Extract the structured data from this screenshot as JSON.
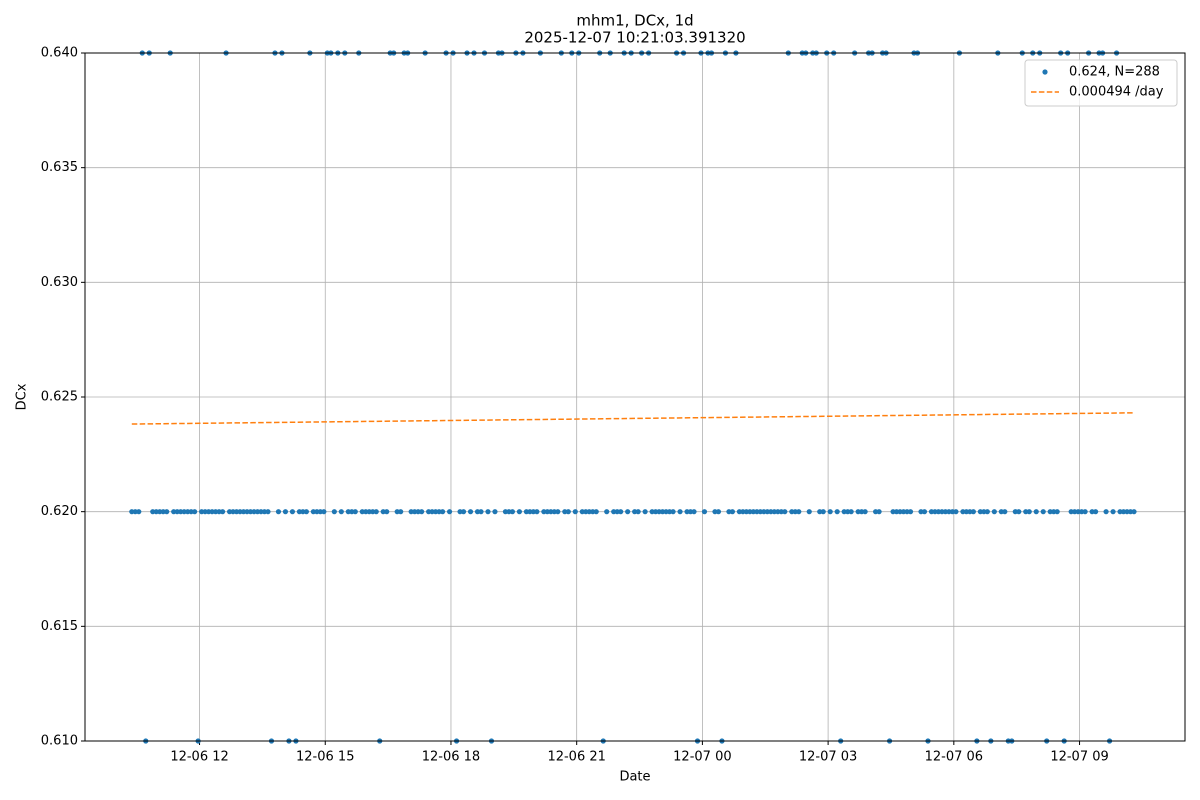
{
  "chart_data": {
    "type": "scatter",
    "title": "mhm1, DCx, 1d",
    "subtitle": "2025-12-07 10:21:03.391320",
    "x_label": "Date",
    "y_label": "DCx",
    "xlim": [
      "12-06 09:16",
      "12-07 11:31"
    ],
    "xticks": [
      "12-06 12",
      "12-06 15",
      "12-06 18",
      "12-06 21",
      "12-07 00",
      "12-07 03",
      "12-07 06",
      "12-07 09"
    ],
    "ylim": [
      0.61,
      0.64
    ],
    "yticks": [
      {
        "value": 0.61,
        "label": "0.610"
      },
      0.615,
      {
        "value": 0.62,
        "label": "0.620"
      },
      0.625,
      {
        "value": 0.63,
        "label": "0.630"
      },
      0.635,
      {
        "value": 0.64,
        "label": "0.640"
      }
    ],
    "grid": true,
    "legend": "upper right",
    "series": [
      {
        "name": "0.624, N=288",
        "type": "scatter",
        "color": "#1f77b4",
        "x": [
          "12-06 10:23",
          "12-06 10:28",
          "12-06 10:33",
          "12-06 10:38",
          "12-06 10:43",
          "12-06 10:48",
          "12-06 10:53",
          "12-06 10:58",
          "12-06 11:03",
          "12-06 11:08",
          "12-06 11:13",
          "12-06 11:18",
          "12-06 11:23",
          "12-06 11:28",
          "12-06 11:33",
          "12-06 11:38",
          "12-06 11:43",
          "12-06 11:48",
          "12-06 11:53",
          "12-06 11:58",
          "12-06 12:03",
          "12-06 12:08",
          "12-06 12:13",
          "12-06 12:18",
          "12-06 12:23",
          "12-06 12:28",
          "12-06 12:33",
          "12-06 12:38",
          "12-06 12:43",
          "12-06 12:48",
          "12-06 12:53",
          "12-06 12:58",
          "12-06 13:03",
          "12-06 13:08",
          "12-06 13:13",
          "12-06 13:18",
          "12-06 13:23",
          "12-06 13:28",
          "12-06 13:33",
          "12-06 13:38",
          "12-06 13:43",
          "12-06 13:48",
          "12-06 13:53",
          "12-06 13:58",
          "12-06 14:03",
          "12-06 14:08",
          "12-06 14:13",
          "12-06 14:18",
          "12-06 14:23",
          "12-06 14:28",
          "12-06 14:33",
          "12-06 14:38",
          "12-06 14:43",
          "12-06 14:48",
          "12-06 14:53",
          "12-06 14:58",
          "12-06 15:03",
          "12-06 15:08",
          "12-06 15:13",
          "12-06 15:18",
          "12-06 15:23",
          "12-06 15:28",
          "12-06 15:33",
          "12-06 15:38",
          "12-06 15:43",
          "12-06 15:48",
          "12-06 15:53",
          "12-06 15:58",
          "12-06 16:03",
          "12-06 16:08",
          "12-06 16:13",
          "12-06 16:18",
          "12-06 16:23",
          "12-06 16:28",
          "12-06 16:33",
          "12-06 16:38",
          "12-06 16:43",
          "12-06 16:48",
          "12-06 16:53",
          "12-06 16:58",
          "12-06 17:03",
          "12-06 17:08",
          "12-06 17:13",
          "12-06 17:18",
          "12-06 17:23",
          "12-06 17:28",
          "12-06 17:33",
          "12-06 17:38",
          "12-06 17:43",
          "12-06 17:48",
          "12-06 17:53",
          "12-06 17:58",
          "12-06 18:03",
          "12-06 18:08",
          "12-06 18:13",
          "12-06 18:18",
          "12-06 18:23",
          "12-06 18:28",
          "12-06 18:33",
          "12-06 18:38",
          "12-06 18:43",
          "12-06 18:48",
          "12-06 18:53",
          "12-06 18:58",
          "12-06 19:03",
          "12-06 19:08",
          "12-06 19:13",
          "12-06 19:18",
          "12-06 19:23",
          "12-06 19:28",
          "12-06 19:33",
          "12-06 19:38",
          "12-06 19:43",
          "12-06 19:48",
          "12-06 19:53",
          "12-06 19:58",
          "12-06 20:03",
          "12-06 20:08",
          "12-06 20:13",
          "12-06 20:18",
          "12-06 20:23",
          "12-06 20:28",
          "12-06 20:33",
          "12-06 20:38",
          "12-06 20:43",
          "12-06 20:48",
          "12-06 20:53",
          "12-06 20:58",
          "12-06 21:03",
          "12-06 21:08",
          "12-06 21:13",
          "12-06 21:18",
          "12-06 21:23",
          "12-06 21:28",
          "12-06 21:33",
          "12-06 21:38",
          "12-06 21:43",
          "12-06 21:48",
          "12-06 21:53",
          "12-06 21:58",
          "12-06 22:03",
          "12-06 22:08",
          "12-06 22:13",
          "12-06 22:18",
          "12-06 22:23",
          "12-06 22:28",
          "12-06 22:33",
          "12-06 22:38",
          "12-06 22:43",
          "12-06 22:48",
          "12-06 22:53",
          "12-06 22:58",
          "12-06 23:03",
          "12-06 23:08",
          "12-06 23:13",
          "12-06 23:18",
          "12-06 23:23",
          "12-06 23:28",
          "12-06 23:33",
          "12-06 23:38",
          "12-06 23:43",
          "12-06 23:48",
          "12-06 23:53",
          "12-06 23:58",
          "12-07 00:03",
          "12-07 00:08",
          "12-07 00:13",
          "12-07 00:18",
          "12-07 00:23",
          "12-07 00:28",
          "12-07 00:33",
          "12-07 00:38",
          "12-07 00:43",
          "12-07 00:48",
          "12-07 00:53",
          "12-07 00:58",
          "12-07 01:03",
          "12-07 01:08",
          "12-07 01:13",
          "12-07 01:18",
          "12-07 01:23",
          "12-07 01:28",
          "12-07 01:33",
          "12-07 01:38",
          "12-07 01:43",
          "12-07 01:48",
          "12-07 01:53",
          "12-07 01:58",
          "12-07 02:03",
          "12-07 02:08",
          "12-07 02:13",
          "12-07 02:18",
          "12-07 02:23",
          "12-07 02:28",
          "12-07 02:33",
          "12-07 02:38",
          "12-07 02:43",
          "12-07 02:48",
          "12-07 02:53",
          "12-07 02:58",
          "12-07 03:03",
          "12-07 03:08",
          "12-07 03:13",
          "12-07 03:18",
          "12-07 03:23",
          "12-07 03:28",
          "12-07 03:33",
          "12-07 03:38",
          "12-07 03:43",
          "12-07 03:48",
          "12-07 03:53",
          "12-07 03:58",
          "12-07 04:03",
          "12-07 04:08",
          "12-07 04:13",
          "12-07 04:18",
          "12-07 04:23",
          "12-07 04:28",
          "12-07 04:33",
          "12-07 04:38",
          "12-07 04:43",
          "12-07 04:48",
          "12-07 04:53",
          "12-07 04:58",
          "12-07 05:03",
          "12-07 05:08",
          "12-07 05:13",
          "12-07 05:18",
          "12-07 05:23",
          "12-07 05:28",
          "12-07 05:33",
          "12-07 05:38",
          "12-07 05:43",
          "12-07 05:48",
          "12-07 05:53",
          "12-07 05:58",
          "12-07 06:03",
          "12-07 06:08",
          "12-07 06:13",
          "12-07 06:18",
          "12-07 06:23",
          "12-07 06:28",
          "12-07 06:33",
          "12-07 06:38",
          "12-07 06:43",
          "12-07 06:48",
          "12-07 06:53",
          "12-07 06:58",
          "12-07 07:03",
          "12-07 07:08",
          "12-07 07:13",
          "12-07 07:18",
          "12-07 07:23",
          "12-07 07:28",
          "12-07 07:33",
          "12-07 07:38",
          "12-07 07:43",
          "12-07 07:48",
          "12-07 07:53",
          "12-07 07:58",
          "12-07 08:03",
          "12-07 08:08",
          "12-07 08:13",
          "12-07 08:18",
          "12-07 08:23",
          "12-07 08:28",
          "12-07 08:33",
          "12-07 08:38",
          "12-07 08:43",
          "12-07 08:48",
          "12-07 08:53",
          "12-07 08:58",
          "12-07 09:03",
          "12-07 09:08",
          "12-07 09:13",
          "12-07 09:18",
          "12-07 09:23",
          "12-07 09:28",
          "12-07 09:33",
          "12-07 09:38",
          "12-07 09:43",
          "12-07 09:48",
          "12-07 09:53",
          "12-07 09:58",
          "12-07 10:03",
          "12-07 10:08",
          "12-07 10:13",
          "12-07 10:18"
        ],
        "values": [
          0.62,
          0.62,
          0.62,
          0.64,
          0.61,
          0.64,
          0.62,
          0.62,
          0.62,
          0.62,
          0.62,
          0.64,
          0.62,
          0.62,
          0.62,
          0.62,
          0.62,
          0.62,
          0.62,
          0.61,
          0.62,
          0.62,
          0.62,
          0.62,
          0.62,
          0.62,
          0.62,
          0.64,
          0.62,
          0.62,
          0.62,
          0.62,
          0.62,
          0.62,
          0.62,
          0.62,
          0.62,
          0.62,
          0.62,
          0.62,
          0.61,
          0.64,
          0.62,
          0.64,
          0.62,
          0.61,
          0.62,
          0.61,
          0.62,
          0.62,
          0.62,
          0.64,
          0.62,
          0.62,
          0.62,
          0.62,
          0.64,
          0.64,
          0.62,
          0.64,
          0.62,
          0.64,
          0.62,
          0.62,
          0.62,
          0.64,
          0.62,
          0.62,
          0.62,
          0.62,
          0.62,
          0.61,
          0.62,
          0.62,
          0.64,
          0.64,
          0.62,
          0.62,
          0.64,
          0.64,
          0.62,
          0.62,
          0.62,
          0.62,
          0.64,
          0.62,
          0.62,
          0.62,
          0.62,
          0.62,
          0.64,
          0.62,
          0.64,
          0.61,
          0.62,
          0.62,
          0.64,
          0.62,
          0.64,
          0.62,
          0.62,
          0.64,
          0.62,
          0.61,
          0.62,
          0.64,
          0.64,
          0.62,
          0.62,
          0.62,
          0.64,
          0.62,
          0.64,
          0.62,
          0.62,
          0.62,
          0.62,
          0.64,
          0.62,
          0.62,
          0.62,
          0.62,
          0.62,
          0.64,
          0.62,
          0.62,
          0.64,
          0.62,
          0.64,
          0.62,
          0.62,
          0.62,
          0.62,
          0.62,
          0.64,
          0.61,
          0.62,
          0.64,
          0.62,
          0.62,
          0.62,
          0.64,
          0.62,
          0.64,
          0.62,
          0.62,
          0.64,
          0.62,
          0.64,
          0.62,
          0.62,
          0.62,
          0.62,
          0.62,
          0.62,
          0.62,
          0.64,
          0.62,
          0.64,
          0.62,
          0.62,
          0.62,
          0.61,
          0.64,
          0.62,
          0.64,
          0.64,
          0.62,
          0.62,
          0.61,
          0.64,
          0.62,
          0.62,
          0.64,
          0.62,
          0.62,
          0.62,
          0.62,
          0.62,
          0.62,
          0.62,
          0.62,
          0.62,
          0.62,
          0.62,
          0.62,
          0.62,
          0.62,
          0.64,
          0.62,
          0.62,
          0.62,
          0.64,
          0.64,
          0.62,
          0.64,
          0.64,
          0.62,
          0.62,
          0.64,
          0.62,
          0.64,
          0.62,
          0.61,
          0.62,
          0.62,
          0.62,
          0.64,
          0.62,
          0.62,
          0.62,
          0.64,
          0.64,
          0.62,
          0.62,
          0.64,
          0.64,
          0.61,
          0.62,
          0.62,
          0.62,
          0.62,
          0.62,
          0.62,
          0.64,
          0.64,
          0.62,
          0.62,
          0.61,
          0.62,
          0.62,
          0.62,
          0.62,
          0.62,
          0.62,
          0.62,
          0.62,
          0.64,
          0.62,
          0.62,
          0.62,
          0.62,
          0.61,
          0.62,
          0.62,
          0.62,
          0.61,
          0.62,
          0.64,
          0.62,
          0.62,
          0.61,
          0.61,
          0.62,
          0.62,
          0.64,
          0.62,
          0.62,
          0.64,
          0.62,
          0.64,
          0.62,
          0.61,
          0.62,
          0.62,
          0.62,
          0.64,
          0.61,
          0.64,
          0.62,
          0.62,
          0.62,
          0.62,
          0.62,
          0.64,
          0.62,
          0.62,
          0.64,
          0.64,
          0.62,
          0.61,
          0.62,
          0.64,
          0.62,
          0.62,
          0.62,
          0.62,
          0.62
        ]
      },
      {
        "name": "0.000494 /day",
        "type": "line",
        "color": "#ff7f0e",
        "x": [
          "12-06 10:23",
          "12-07 10:18"
        ],
        "values": [
          0.62382,
          0.62431
        ]
      }
    ]
  }
}
